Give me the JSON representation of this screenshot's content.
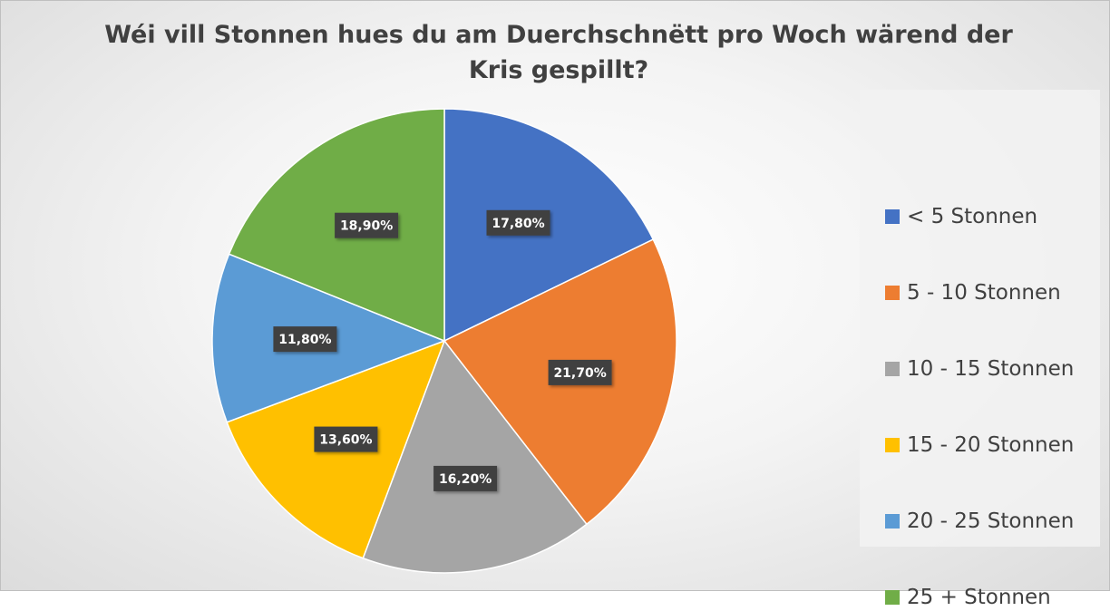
{
  "chart_data": {
    "type": "pie",
    "title_lines": [
      "Wéi vill Stonnen hues du am Duerchschnëtt pro Woch wärend der",
      "Kris gespillt?"
    ],
    "categories": [
      "< 5 Stonnen",
      "5 - 10 Stonnen",
      "10 - 15 Stonnen",
      "15 - 20 Stonnen",
      "20 - 25 Stonnen",
      "25 + Stonnen"
    ],
    "values": [
      17.8,
      21.7,
      16.2,
      13.6,
      11.8,
      18.9
    ],
    "data_labels": [
      "17,80%",
      "21,70%",
      "16,20%",
      "13,60%",
      "11,80%",
      "18,90%"
    ],
    "colors": [
      "#4472C4",
      "#ED7D31",
      "#A5A5A5",
      "#FFC000",
      "#5B9BD5",
      "#70AD47"
    ],
    "start_angle_deg": 0,
    "direction": "clockwise",
    "legend_position": "right"
  }
}
